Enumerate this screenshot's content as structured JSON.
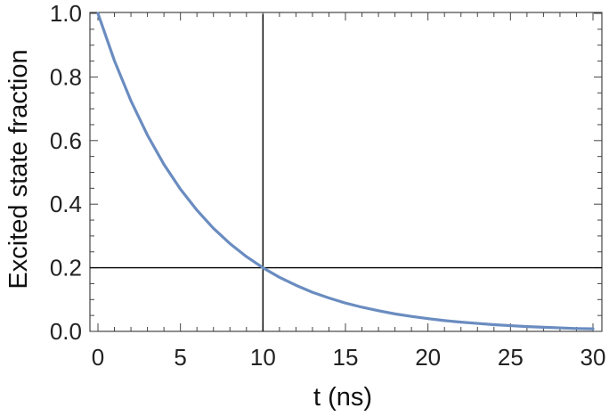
{
  "chart_data": {
    "type": "line",
    "xlabel": "t (ns)",
    "ylabel": "Excited state fraction",
    "xlim": [
      0,
      30
    ],
    "ylim": [
      0,
      1
    ],
    "x_ticks": [
      "0",
      "5",
      "10",
      "15",
      "20",
      "25",
      "30"
    ],
    "y_ticks": [
      "0.0",
      "0.2",
      "0.4",
      "0.6",
      "0.8",
      "1.0"
    ],
    "grid": false,
    "series": [
      {
        "color": "#6a8cc0",
        "x": [
          0,
          1,
          2,
          3,
          4,
          5,
          6,
          7,
          8,
          9,
          10,
          11,
          12,
          13,
          14,
          15,
          16,
          17,
          18,
          19,
          20,
          21,
          22,
          23,
          24,
          25,
          26,
          27,
          28,
          29,
          30
        ],
        "y": [
          1.0,
          0.851,
          0.725,
          0.617,
          0.525,
          0.447,
          0.381,
          0.324,
          0.276,
          0.235,
          0.2,
          0.17,
          0.145,
          0.123,
          0.105,
          0.089,
          0.076,
          0.065,
          0.055,
          0.047,
          0.04,
          0.034,
          0.029,
          0.025,
          0.021,
          0.018,
          0.015,
          0.013,
          0.011,
          0.009,
          0.008
        ]
      }
    ],
    "reference_lines": [
      {
        "axis": "x",
        "value": 10,
        "color": "#000000"
      },
      {
        "axis": "y",
        "value": 0.2,
        "color": "#000000"
      }
    ]
  }
}
